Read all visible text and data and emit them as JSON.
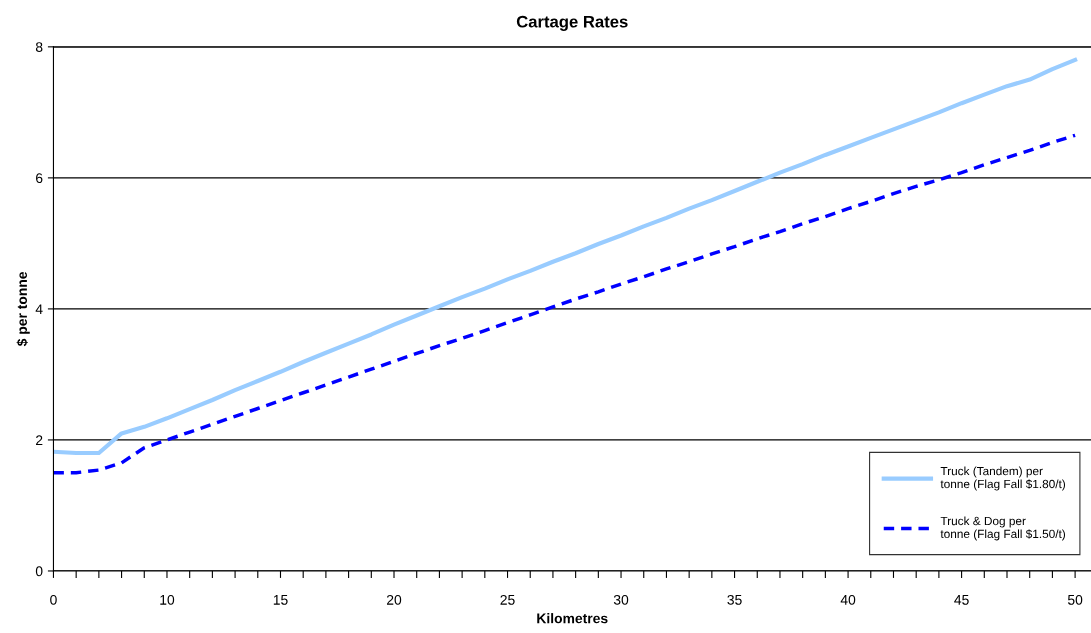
{
  "chart_data": {
    "type": "line",
    "title": "Cartage Rates",
    "xlabel": "Kilometres",
    "ylabel": "$ per tonne",
    "categories": [
      "0",
      null,
      null,
      null,
      null,
      "10",
      null,
      null,
      null,
      null,
      "15",
      null,
      null,
      null,
      null,
      "20",
      null,
      null,
      null,
      null,
      "25",
      null,
      null,
      null,
      null,
      "30",
      null,
      null,
      null,
      null,
      "35",
      null,
      null,
      null,
      null,
      "40",
      null,
      null,
      null,
      null,
      "45",
      null,
      null,
      null,
      null,
      "50"
    ],
    "series": [
      {
        "name": "Truck (Tandem) per tonne (Flag Fall $1.80/t)",
        "color": "#99ccff",
        "line_style": "solid",
        "values": [
          1.82,
          1.8,
          1.8,
          2.1,
          2.2,
          2.33,
          2.47,
          2.61,
          2.76,
          2.9,
          3.04,
          3.19,
          3.33,
          3.47,
          3.61,
          3.76,
          3.9,
          4.04,
          4.18,
          4.31,
          4.45,
          4.58,
          4.72,
          4.85,
          4.99,
          5.12,
          5.26,
          5.39,
          5.53,
          5.66,
          5.8,
          5.94,
          6.08,
          6.21,
          6.35,
          6.48,
          6.61,
          6.74,
          6.87,
          7.0,
          7.14,
          7.27,
          7.4,
          7.5,
          7.66,
          7.8
        ]
      },
      {
        "name": "Truck & Dog per tonne (Flag Fall $1.50/t)",
        "color": "#0000ff",
        "line_style": "dashed",
        "values": [
          1.5,
          1.5,
          1.54,
          1.65,
          1.88,
          2.0,
          2.12,
          2.24,
          2.36,
          2.48,
          2.6,
          2.72,
          2.84,
          2.96,
          3.08,
          3.2,
          3.32,
          3.44,
          3.55,
          3.67,
          3.79,
          3.91,
          4.03,
          4.15,
          4.26,
          4.38,
          4.49,
          4.61,
          4.72,
          4.84,
          4.95,
          5.07,
          5.18,
          5.3,
          5.41,
          5.53,
          5.64,
          5.76,
          5.87,
          5.97,
          6.08,
          6.2,
          6.31,
          6.42,
          6.54,
          6.65
        ]
      }
    ],
    "ylim": [
      0,
      8
    ],
    "yticks": [
      0,
      2,
      4,
      6,
      8
    ],
    "grid": "y",
    "legend": "bottom right",
    "marker": "none"
  }
}
